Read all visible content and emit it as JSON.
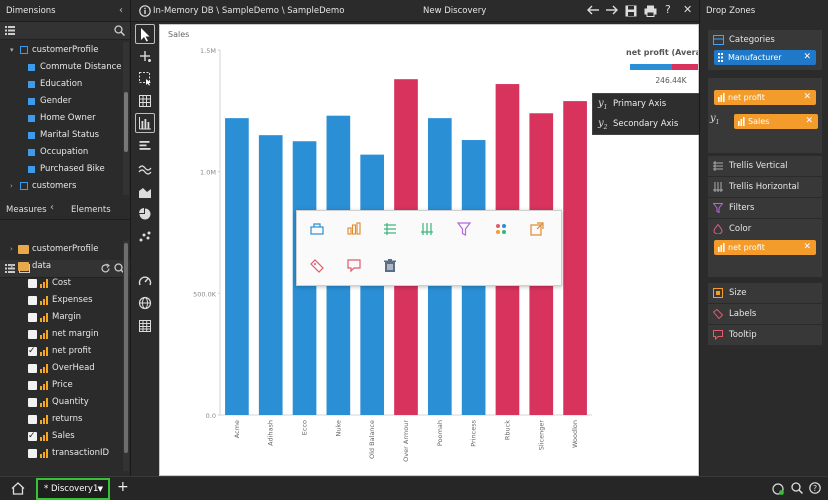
{
  "left": {
    "dimensions_title": "Dimensions",
    "dimensions": [
      {
        "label": "customerProfile",
        "level": 0,
        "expanded": true
      },
      {
        "label": "Commute Distance",
        "level": 1
      },
      {
        "label": "Education",
        "level": 1
      },
      {
        "label": "Gender",
        "level": 1
      },
      {
        "label": "Home Owner",
        "level": 1
      },
      {
        "label": "Marital Status",
        "level": 1
      },
      {
        "label": "Occupation",
        "level": 1
      },
      {
        "label": "Purchased Bike",
        "level": 1
      },
      {
        "label": "customers",
        "level": 0,
        "expanded": false
      }
    ],
    "tabs": {
      "measures": "Measures",
      "elements": "Elements"
    },
    "folders": [
      {
        "label": "customerProfile",
        "expanded": false
      },
      {
        "label": "data",
        "expanded": true
      }
    ],
    "measures": [
      {
        "label": "Cost",
        "checked": false
      },
      {
        "label": "Expenses",
        "checked": false
      },
      {
        "label": "Margin",
        "checked": false
      },
      {
        "label": "net margin",
        "checked": false
      },
      {
        "label": "net profit",
        "checked": true
      },
      {
        "label": "OverHead",
        "checked": false
      },
      {
        "label": "Price",
        "checked": false
      },
      {
        "label": "Quantity",
        "checked": false
      },
      {
        "label": "returns",
        "checked": false
      },
      {
        "label": "Sales",
        "checked": true
      },
      {
        "label": "transactionID",
        "checked": false
      }
    ]
  },
  "header": {
    "path": "In-Memory DB \\ SampleDemo \\ SampleDemo",
    "title": "New Discovery"
  },
  "tools": [
    "pointer-icon",
    "add-icon",
    "select-region-icon",
    "grid-icon",
    "bar-chart-icon",
    "list-icon",
    "wave-icon",
    "area-icon",
    "pie-icon",
    "scatter-icon",
    "gauge-icon",
    "globe-icon",
    "table-icon"
  ],
  "chart_data": {
    "type": "bar",
    "categories": [
      "Acme",
      "Adihash",
      "Ecco",
      "Nuke",
      "Old Balance",
      "Over Armour",
      "Poomah",
      "Princess",
      "Rbuck",
      "Slicenger",
      "Woodlon"
    ],
    "series": [
      {
        "name": "Sales",
        "values": [
          1220000,
          1150000,
          1125000,
          1230000,
          1070000,
          1380000,
          1220000,
          1130000,
          1360000,
          1240000,
          1290000
        ]
      }
    ],
    "ylabel": "Sales",
    "ylim": [
      0,
      1500000
    ],
    "yticks": [
      "0.0",
      "500.0K",
      "1.0M",
      "1.5M"
    ],
    "colors": {
      "low": "#2a8fd4",
      "high": "#d7335c"
    },
    "bar_color_groups": [
      "low",
      "low",
      "low",
      "low",
      "low",
      "high",
      "low",
      "low",
      "high",
      "high",
      "high"
    ],
    "legend": {
      "title": "net profit (Average)",
      "value": "246.44K",
      "position": "top-right"
    }
  },
  "context_menu": {
    "row1": [
      "bucket-icon",
      "bar-chart-icon",
      "list-icon",
      "bars-vertical-icon",
      "filter-icon",
      "color-dots-icon",
      "export-icon"
    ],
    "row2": [
      "tag-icon",
      "comment-icon",
      "trash-icon"
    ]
  },
  "axis_popup": {
    "options": [
      {
        "symbol": "y",
        "sub": "1",
        "label": "Primary Axis"
      },
      {
        "symbol": "y",
        "sub": "2",
        "label": "Secondary Axis"
      }
    ]
  },
  "right": {
    "title": "Drop Zones",
    "categories_label": "Categories",
    "category_pill": "Manufacturer",
    "values_pills": [
      "net profit",
      "Sales"
    ],
    "trellis_vertical": "Trellis Vertical",
    "trellis_horizontal": "Trellis Horizontal",
    "filters": "Filters",
    "color": "Color",
    "color_pill": "net profit",
    "size": "Size",
    "labels": "Labels",
    "tooltip": "Tooltip"
  },
  "bottom": {
    "tab_label": "* Discovery1",
    "add": "+"
  }
}
